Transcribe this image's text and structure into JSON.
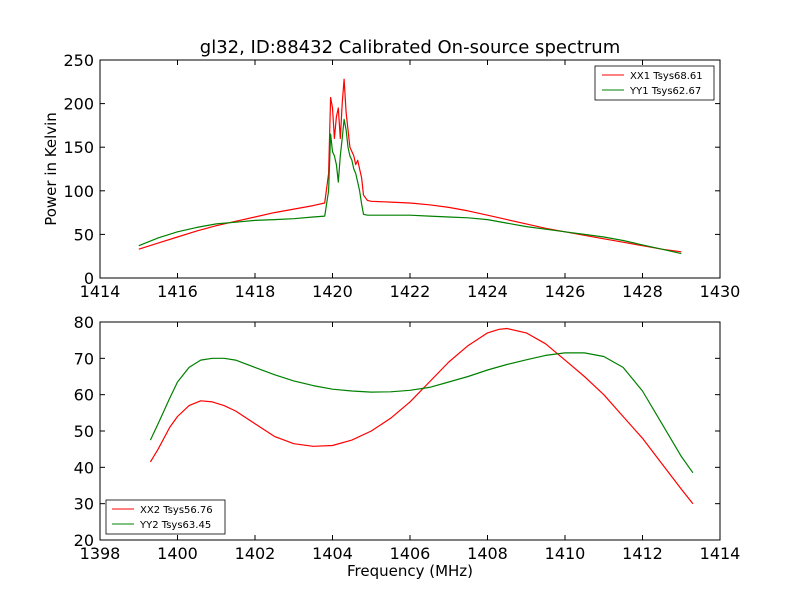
{
  "chart_data": [
    {
      "type": "line",
      "title": "gl32, ID:88432 Calibrated On-source spectrum",
      "xlabel": "",
      "ylabel": "Power in Kelvin",
      "xlim": [
        1414,
        1430
      ],
      "ylim": [
        0,
        250
      ],
      "xticks": [
        1414,
        1416,
        1418,
        1420,
        1422,
        1424,
        1426,
        1428,
        1430
      ],
      "yticks": [
        0,
        50,
        100,
        150,
        200,
        250
      ],
      "grid": false,
      "legend_position": "top-right",
      "series": [
        {
          "name": "XX1 Tsys68.61",
          "color": "#ff0000",
          "x": [
            1415.0,
            1415.5,
            1416.0,
            1416.5,
            1417.0,
            1417.5,
            1418.0,
            1418.5,
            1419.0,
            1419.5,
            1419.8,
            1419.9,
            1419.95,
            1420.0,
            1420.05,
            1420.1,
            1420.15,
            1420.2,
            1420.25,
            1420.3,
            1420.35,
            1420.4,
            1420.45,
            1420.5,
            1420.55,
            1420.6,
            1420.65,
            1420.7,
            1420.75,
            1420.8,
            1420.9,
            1421.0,
            1421.5,
            1422.0,
            1422.5,
            1423.0,
            1423.5,
            1424.0,
            1424.5,
            1425.0,
            1425.5,
            1426.0,
            1426.5,
            1427.0,
            1427.5,
            1428.0,
            1428.5,
            1429.0
          ],
          "y": [
            33,
            40,
            47,
            54,
            60,
            65,
            70,
            75,
            79,
            83,
            86,
            120,
            207,
            195,
            160,
            185,
            195,
            160,
            200,
            228,
            190,
            170,
            150,
            145,
            140,
            130,
            135,
            125,
            115,
            95,
            89,
            88,
            87,
            86,
            84,
            81,
            77,
            72,
            67,
            62,
            57,
            53,
            49,
            45,
            41,
            37,
            33,
            30
          ]
        },
        {
          "name": "YY1 Tsys62.67",
          "color": "#008000",
          "x": [
            1415.0,
            1415.5,
            1416.0,
            1416.5,
            1417.0,
            1417.5,
            1418.0,
            1418.5,
            1419.0,
            1419.5,
            1419.8,
            1419.9,
            1419.95,
            1420.0,
            1420.05,
            1420.1,
            1420.15,
            1420.2,
            1420.25,
            1420.3,
            1420.35,
            1420.4,
            1420.45,
            1420.5,
            1420.55,
            1420.6,
            1420.65,
            1420.7,
            1420.75,
            1420.8,
            1420.9,
            1421.0,
            1421.5,
            1422.0,
            1422.5,
            1423.0,
            1423.5,
            1424.0,
            1424.5,
            1425.0,
            1425.5,
            1426.0,
            1426.5,
            1427.0,
            1427.5,
            1428.0,
            1428.5,
            1429.0
          ],
          "y": [
            37,
            46,
            53,
            58,
            62,
            64,
            66,
            67,
            68,
            70,
            71,
            100,
            165,
            145,
            140,
            130,
            110,
            140,
            160,
            182,
            170,
            150,
            140,
            135,
            125,
            120,
            110,
            100,
            85,
            73,
            72,
            72,
            72,
            72,
            71,
            70,
            69,
            67,
            63,
            59,
            56,
            53,
            50,
            47,
            43,
            38,
            33,
            28
          ]
        }
      ]
    },
    {
      "type": "line",
      "title": "",
      "xlabel": "Frequency (MHz)",
      "ylabel": "",
      "xlim": [
        1398,
        1414
      ],
      "ylim": [
        20,
        80
      ],
      "xticks": [
        1398,
        1400,
        1402,
        1404,
        1406,
        1408,
        1410,
        1412,
        1414
      ],
      "yticks": [
        20,
        30,
        40,
        50,
        60,
        70,
        80
      ],
      "grid": false,
      "legend_position": "bottom-left",
      "series": [
        {
          "name": "XX2 Tsys56.76",
          "color": "#ff0000",
          "x": [
            1399.3,
            1399.5,
            1399.8,
            1400.0,
            1400.3,
            1400.6,
            1400.9,
            1401.2,
            1401.5,
            1402.0,
            1402.5,
            1403.0,
            1403.5,
            1404.0,
            1404.5,
            1405.0,
            1405.5,
            1406.0,
            1406.5,
            1407.0,
            1407.5,
            1408.0,
            1408.3,
            1408.5,
            1409.0,
            1409.5,
            1410.0,
            1410.5,
            1411.0,
            1411.5,
            1412.0,
            1412.5,
            1413.0,
            1413.3
          ],
          "y": [
            41.5,
            45,
            51,
            54,
            57,
            58.3,
            58,
            57,
            55.5,
            52,
            48.5,
            46.5,
            45.8,
            46,
            47.5,
            50,
            53.5,
            58,
            63.5,
            69,
            73.5,
            77,
            78,
            78.2,
            77,
            74,
            69.5,
            65,
            60,
            54,
            48,
            41,
            34,
            30
          ]
        },
        {
          "name": "YY2 Tsys63.45",
          "color": "#008000",
          "x": [
            1399.3,
            1399.5,
            1399.8,
            1400.0,
            1400.3,
            1400.6,
            1400.9,
            1401.2,
            1401.5,
            1402.0,
            1402.5,
            1403.0,
            1403.5,
            1404.0,
            1404.5,
            1405.0,
            1405.5,
            1406.0,
            1406.5,
            1407.0,
            1407.5,
            1408.0,
            1408.5,
            1409.0,
            1409.5,
            1410.0,
            1410.5,
            1411.0,
            1411.5,
            1412.0,
            1412.5,
            1413.0,
            1413.3
          ],
          "y": [
            47.5,
            52,
            59,
            63.5,
            67.5,
            69.5,
            70,
            70,
            69.5,
            67.5,
            65.5,
            63.8,
            62.5,
            61.5,
            61,
            60.7,
            60.8,
            61.2,
            62,
            63.5,
            65,
            66.8,
            68.3,
            69.6,
            70.8,
            71.5,
            71.5,
            70.5,
            67.5,
            61,
            52,
            43,
            38.5
          ]
        }
      ]
    }
  ]
}
